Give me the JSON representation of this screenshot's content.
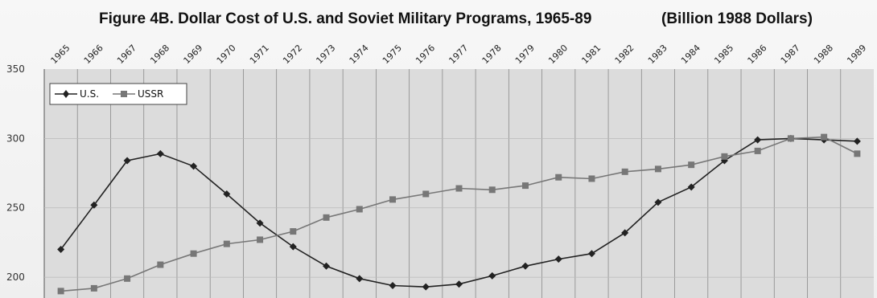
{
  "chart_data": {
    "type": "line",
    "title": "Figure 4B. Dollar Cost of U.S. and Soviet Military Programs, 1965-89",
    "units_note": "(Billion 1988 Dollars)",
    "categories": [
      "1965",
      "1966",
      "1967",
      "1968",
      "1969",
      "1970",
      "1971",
      "1972",
      "1973",
      "1974",
      "1975",
      "1976",
      "1977",
      "1978",
      "1979",
      "1980",
      "1981",
      "1982",
      "1983",
      "1984",
      "1985",
      "1986",
      "1987",
      "1988",
      "1989"
    ],
    "y_ticks": [
      "350",
      "300",
      "250",
      "200"
    ],
    "ylim": [
      185,
      350
    ],
    "grid": true,
    "legend_position": "top-left",
    "series": [
      {
        "name": "U.S.",
        "marker": "diamond",
        "color": "#222222",
        "values": [
          220,
          252,
          284,
          289,
          280,
          260,
          239,
          222,
          208,
          199,
          194,
          193,
          195,
          201,
          208,
          213,
          217,
          232,
          254,
          265,
          284,
          299,
          300,
          299,
          298
        ]
      },
      {
        "name": "USSR",
        "marker": "square",
        "color": "#777777",
        "values": [
          190,
          192,
          199,
          209,
          217,
          224,
          227,
          233,
          243,
          249,
          256,
          260,
          264,
          263,
          266,
          272,
          271,
          276,
          278,
          281,
          287,
          291,
          300,
          301,
          289
        ]
      }
    ]
  }
}
